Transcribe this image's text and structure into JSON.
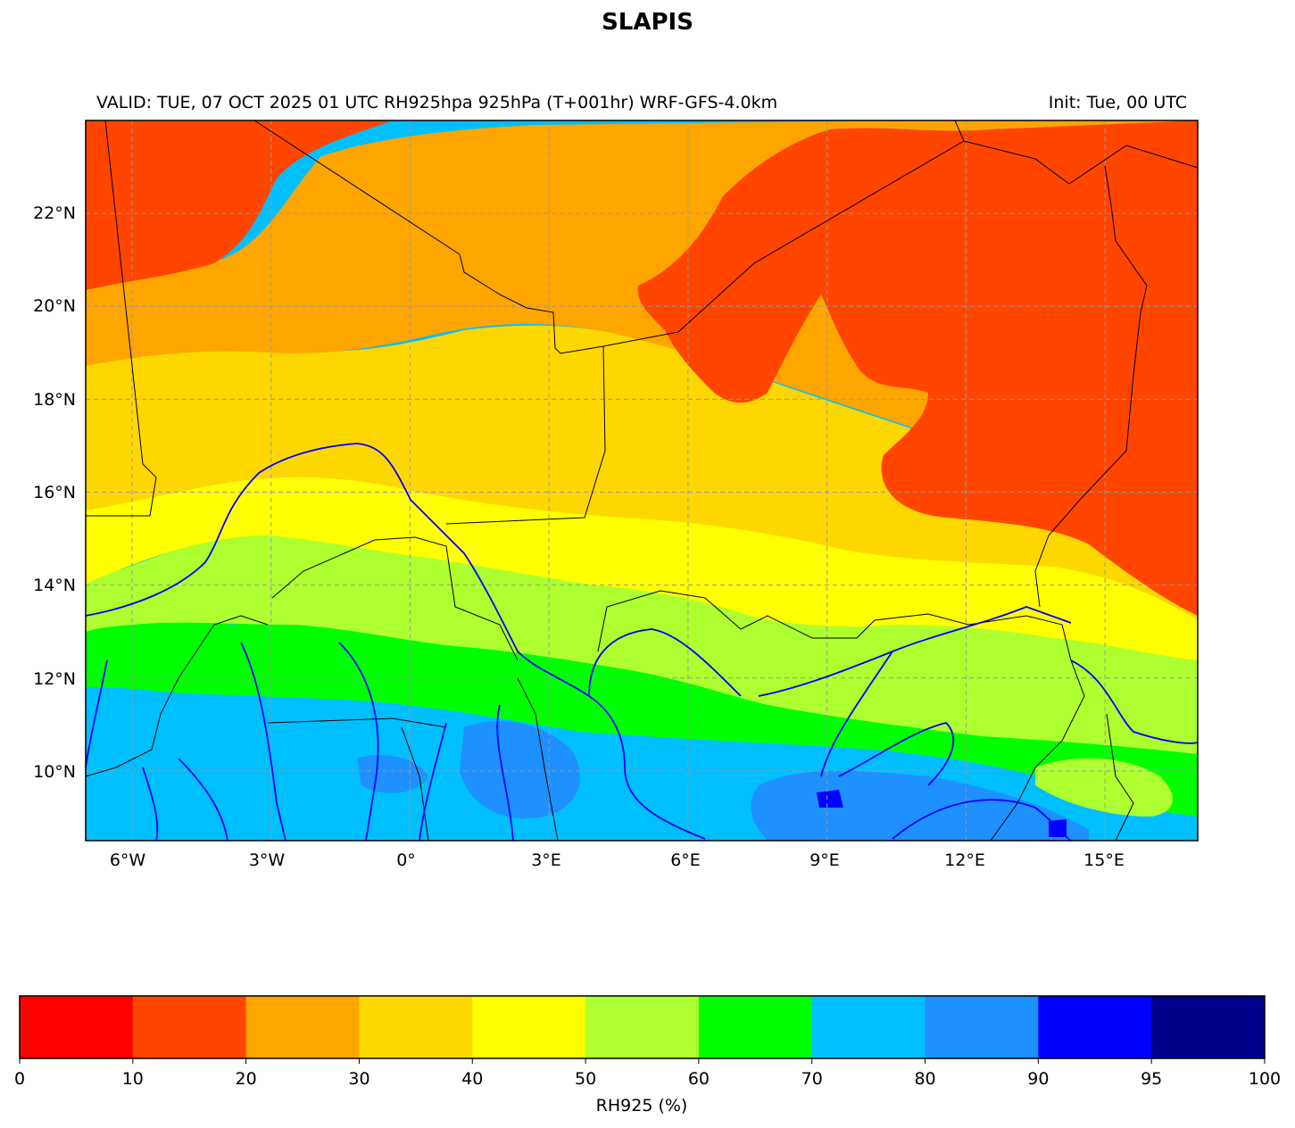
{
  "title": "SLAPIS",
  "subtitle_left": "VALID: TUE, 07 OCT 2025 01 UTC    RH925hpa 925hPa (T+001hr) WRF-GFS-4.0km",
  "subtitle_right": "Init: Tue, 00 UTC",
  "map": {
    "lon_range": [
      -7,
      17
    ],
    "lat_range": [
      8.5,
      24
    ],
    "grid": true,
    "lon_ticks": [
      "6°W",
      "3°W",
      "0°",
      "3°E",
      "6°E",
      "9°E",
      "12°E",
      "15°E"
    ],
    "lat_ticks": [
      "22°N",
      "20°N",
      "18°N",
      "16°N",
      "14°N",
      "12°N",
      "10°N"
    ]
  },
  "colorbar": {
    "label": "RH925 (%)",
    "bounds": [
      0,
      10,
      20,
      30,
      40,
      50,
      60,
      70,
      80,
      90,
      95,
      100
    ],
    "tick_labels": [
      "0",
      "10",
      "20",
      "30",
      "40",
      "50",
      "60",
      "70",
      "80",
      "90",
      "95",
      "100"
    ],
    "colors": [
      "#ff0000",
      "#ff4500",
      "#ffa500",
      "#ffd700",
      "#ffff00",
      "#adff2f",
      "#00ff00",
      "#00bfff",
      "#1e90ff",
      "#0000ff",
      "#00008b"
    ]
  }
}
